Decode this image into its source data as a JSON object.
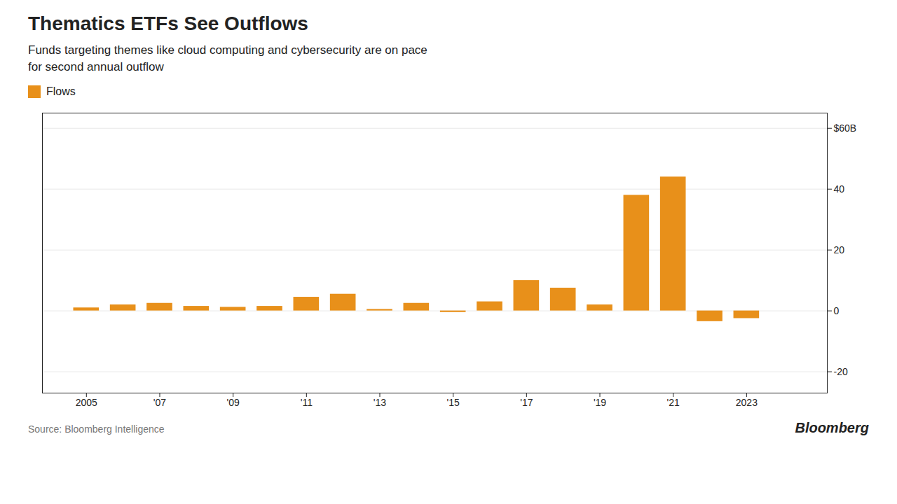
{
  "chart_data": {
    "type": "bar",
    "title": "Thematics ETFs See Outflows",
    "subtitle": "Funds targeting themes like cloud computing and cybersecurity are on pace\nfor second annual outflow",
    "annotations": [
      "Source: Bloomberg Intelligence",
      "Bloomberg"
    ],
    "x": [
      2005,
      2006,
      2007,
      2008,
      2009,
      2010,
      2011,
      2012,
      2013,
      2014,
      2015,
      2016,
      2017,
      2018,
      2019,
      2020,
      2021,
      2022,
      2023
    ],
    "series": [
      {
        "name": "Flows",
        "color": "#E8901A",
        "values": [
          1.0,
          2.0,
          2.5,
          1.5,
          1.2,
          1.5,
          4.5,
          5.5,
          0.5,
          2.5,
          -0.5,
          3.0,
          10.0,
          7.5,
          2.0,
          38.0,
          44.0,
          -3.5,
          -2.5
        ]
      }
    ],
    "xlim": [
      2003.8,
      2025.2
    ],
    "xticks": [
      2005,
      {
        "value": 2007,
        "label": "'07"
      },
      {
        "value": 2009,
        "label": "'09"
      },
      {
        "value": 2011,
        "label": "'11"
      },
      {
        "value": 2013,
        "label": "'13"
      },
      {
        "value": 2015,
        "label": "'15"
      },
      {
        "value": 2017,
        "label": "'17"
      },
      {
        "value": 2019,
        "label": "'19"
      },
      {
        "value": 2021,
        "label": "'21"
      },
      2023
    ],
    "ylim": [
      -27,
      65
    ],
    "yticks": [
      -20,
      0,
      20,
      40,
      {
        "value": 60,
        "label": "$60B"
      }
    ],
    "grid": true,
    "legend": "top-left"
  }
}
